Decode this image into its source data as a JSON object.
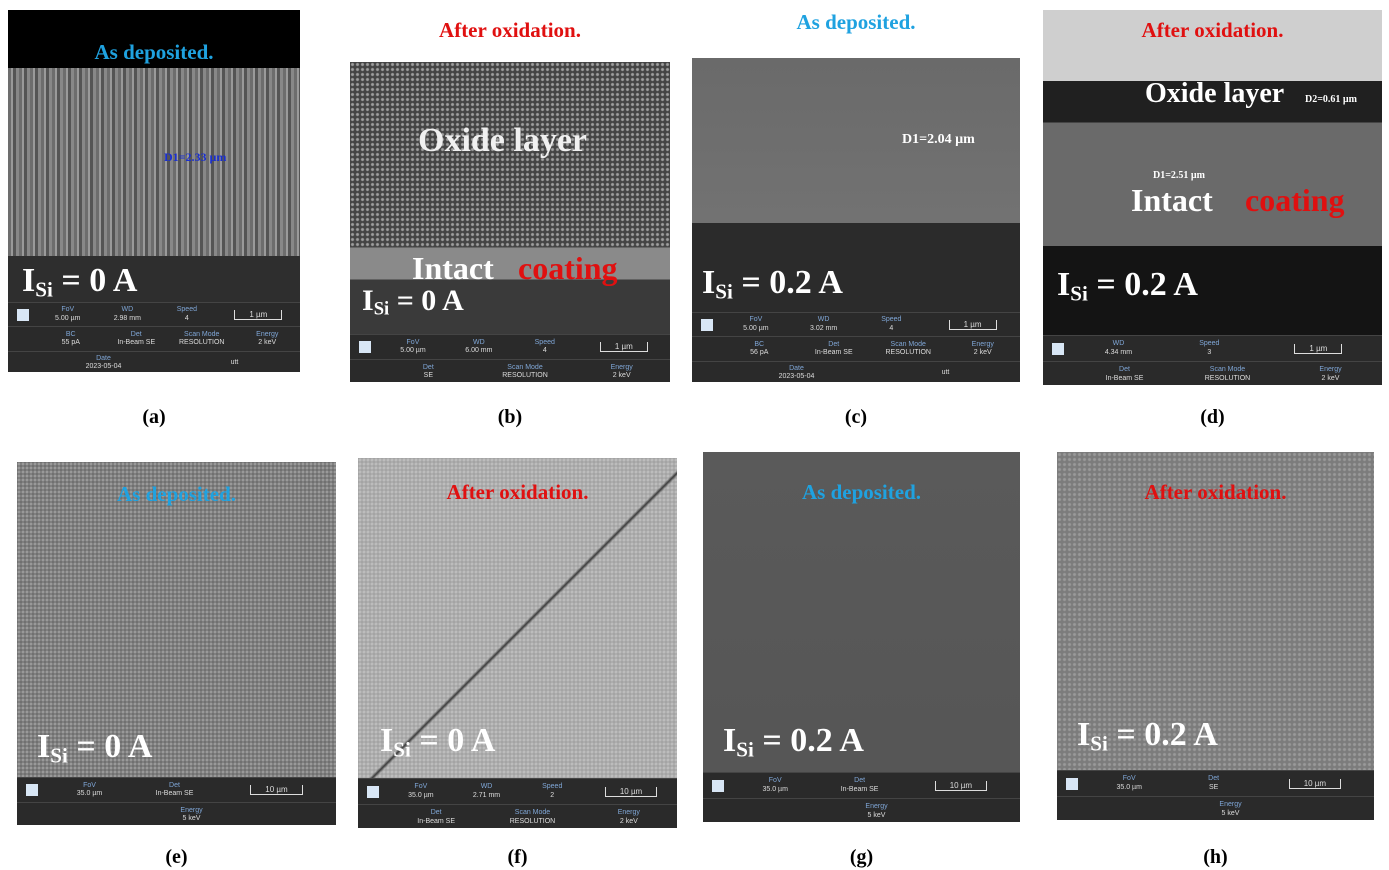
{
  "panels": [
    {
      "heading": "As deposited.",
      "current": {
        "symbol": "I",
        "sub": "Si",
        "rest": "= 0 A"
      },
      "annotations": [
        "D1=2.33 µm"
      ],
      "info": {
        "rows": [
          [
            {
              "label": "FoV",
              "value": "5.00 µm"
            },
            {
              "label": "WD",
              "value": "2.98 mm"
            },
            {
              "label": "Speed",
              "value": "4"
            }
          ],
          [
            {
              "label": "BC",
              "value": "55 pA"
            },
            {
              "label": "Det",
              "value": "In-Beam SE"
            },
            {
              "label": "Scan Mode",
              "value": "RESOLUTION"
            },
            {
              "label": "Energy",
              "value": "2 keV"
            }
          ],
          [
            {
              "label": "Date",
              "value": "2023-05-04"
            },
            {
              "value": "utt"
            }
          ]
        ],
        "scale": "1 µm"
      },
      "caption": "(a)"
    },
    {
      "heading": "After oxidation.",
      "current": {
        "symbol": "I",
        "sub": "Si",
        "rest": "= 0 A"
      },
      "annotations": [
        "Oxide layer",
        "Intact",
        "coating"
      ],
      "info": {
        "rows": [
          [
            {
              "label": "FoV",
              "value": "5.00 µm"
            },
            {
              "label": "WD",
              "value": "6.00 mm"
            },
            {
              "label": "Speed",
              "value": "4"
            }
          ],
          [
            {
              "label": "Det",
              "value": "SE"
            },
            {
              "label": "Scan Mode",
              "value": "RESOLUTION"
            },
            {
              "label": "Energy",
              "value": "2 keV"
            }
          ]
        ],
        "scale": "1 µm"
      },
      "caption": "(b)"
    },
    {
      "heading": "As deposited.",
      "current": {
        "symbol": "I",
        "sub": "Si",
        "rest": "= 0.2 A"
      },
      "annotations": [
        "D1=2.04 µm"
      ],
      "info": {
        "rows": [
          [
            {
              "label": "FoV",
              "value": "5.00 µm"
            },
            {
              "label": "WD",
              "value": "3.02 mm"
            },
            {
              "label": "Speed",
              "value": "4"
            }
          ],
          [
            {
              "label": "BC",
              "value": "56 pA"
            },
            {
              "label": "Det",
              "value": "In-Beam SE"
            },
            {
              "label": "Scan Mode",
              "value": "RESOLUTION"
            },
            {
              "label": "Energy",
              "value": "2 keV"
            }
          ],
          [
            {
              "label": "Date",
              "value": "2023-05-04"
            },
            {
              "value": "utt"
            }
          ]
        ],
        "scale": "1 µm"
      },
      "caption": "(c)"
    },
    {
      "heading": "After oxidation.",
      "current": {
        "symbol": "I",
        "sub": "Si",
        "rest": "= 0.2 A"
      },
      "annotations": [
        "Oxide layer",
        "D2=0.61 µm",
        "D1=2.51 µm",
        "Intact",
        "coating"
      ],
      "info": {
        "rows": [
          [
            {
              "label": "WD",
              "value": "4.34 mm"
            },
            {
              "label": "Speed",
              "value": "3"
            }
          ],
          [
            {
              "label": "Det",
              "value": "In-Beam SE"
            },
            {
              "label": "Scan Mode",
              "value": "RESOLUTION"
            },
            {
              "label": "Energy",
              "value": "2 keV"
            }
          ]
        ],
        "scale": "1 µm"
      },
      "caption": "(d)"
    },
    {
      "heading": "As deposited.",
      "current": {
        "symbol": "I",
        "sub": "Si",
        "rest": "= 0 A"
      },
      "annotations": [],
      "info": {
        "rows": [
          [
            {
              "label": "FoV",
              "value": "35.0 µm"
            },
            {
              "label": "Det",
              "value": "In-Beam SE"
            }
          ],
          [
            {
              "label": "Energy",
              "value": "5 keV"
            }
          ]
        ],
        "scale": "10 µm"
      },
      "caption": "(e)"
    },
    {
      "heading": "After oxidation.",
      "current": {
        "symbol": "I",
        "sub": "Si",
        "rest": "= 0 A"
      },
      "annotations": [],
      "info": {
        "rows": [
          [
            {
              "label": "FoV",
              "value": "35.0 µm"
            },
            {
              "label": "WD",
              "value": "2.71 mm"
            },
            {
              "label": "Speed",
              "value": "2"
            }
          ],
          [
            {
              "label": "Det",
              "value": "In-Beam SE"
            },
            {
              "label": "Scan Mode",
              "value": "RESOLUTION"
            },
            {
              "label": "Energy",
              "value": "2 keV"
            }
          ]
        ],
        "scale": "10 µm"
      },
      "caption": "(f)"
    },
    {
      "heading": "As deposited.",
      "current": {
        "symbol": "I",
        "sub": "Si",
        "rest": "= 0.2 A"
      },
      "annotations": [],
      "info": {
        "rows": [
          [
            {
              "label": "FoV",
              "value": "35.0 µm"
            },
            {
              "label": "Det",
              "value": "In-Beam SE"
            }
          ],
          [
            {
              "label": "Energy",
              "value": "5 keV"
            }
          ]
        ],
        "scale": "10 µm"
      },
      "caption": "(g)"
    },
    {
      "heading": "After oxidation.",
      "current": {
        "symbol": "I",
        "sub": "Si",
        "rest": "= 0.2 A"
      },
      "annotations": [],
      "info": {
        "rows": [
          [
            {
              "label": "FoV",
              "value": "35.0 µm"
            },
            {
              "label": "Det",
              "value": "SE"
            }
          ],
          [
            {
              "label": "Energy",
              "value": "5 keV"
            }
          ]
        ],
        "scale": "10 µm"
      },
      "caption": "(h)"
    }
  ]
}
